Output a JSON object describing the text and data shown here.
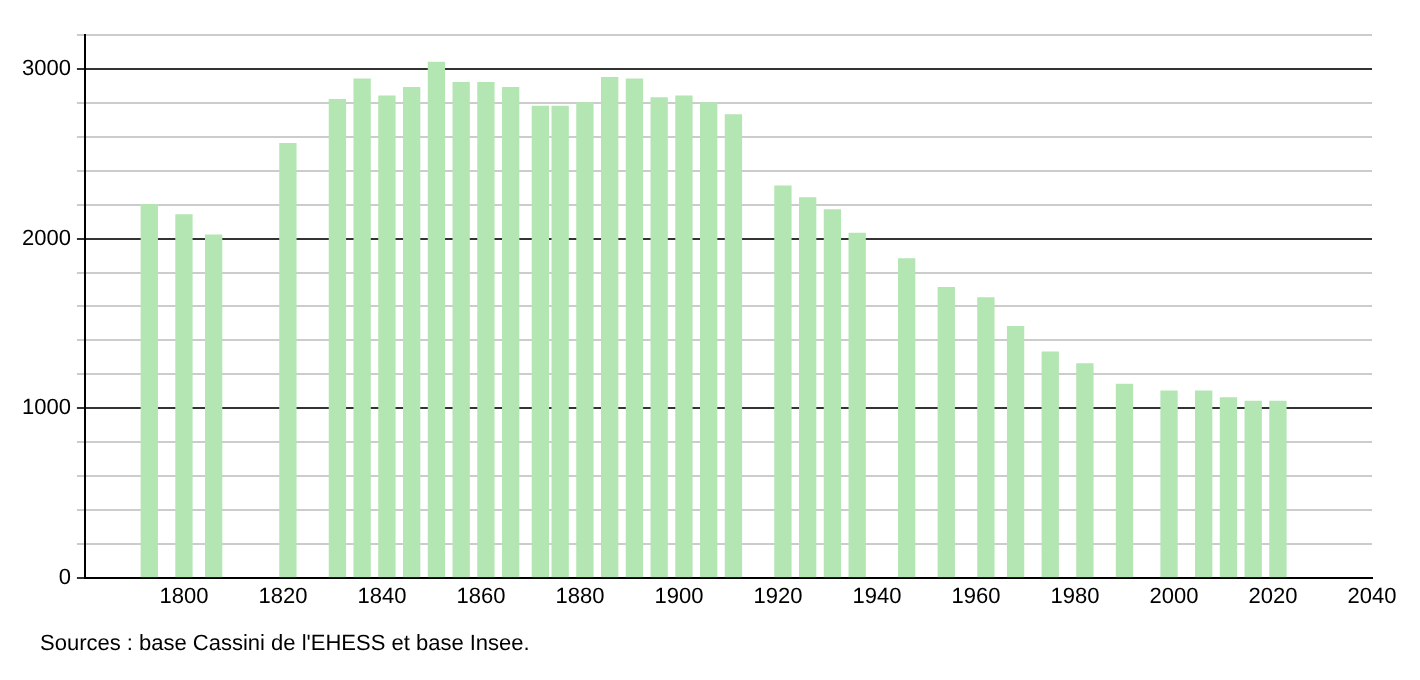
{
  "chart_data": {
    "type": "bar",
    "x": [
      1793,
      1800,
      1806,
      1821,
      1831,
      1836,
      1841,
      1846,
      1851,
      1856,
      1861,
      1866,
      1872,
      1876,
      1881,
      1886,
      1891,
      1896,
      1901,
      1906,
      1911,
      1921,
      1926,
      1931,
      1936,
      1946,
      1954,
      1962,
      1968,
      1975,
      1982,
      1990,
      1999,
      2006,
      2011,
      2016,
      2021
    ],
    "values": [
      2200,
      2140,
      2020,
      2560,
      2820,
      2940,
      2840,
      2890,
      3040,
      2920,
      2920,
      2890,
      2780,
      2780,
      2800,
      2950,
      2940,
      2830,
      2840,
      2800,
      2730,
      2310,
      2240,
      2170,
      2030,
      1880,
      1710,
      1650,
      1480,
      1330,
      1260,
      1140,
      1100,
      1100,
      1060,
      1040,
      1040
    ],
    "color": "#b3e6b3",
    "xlim": [
      1780,
      2040
    ],
    "xticks": [
      1800,
      1820,
      1840,
      1860,
      1880,
      1900,
      1920,
      1940,
      1960,
      1980,
      2000,
      2020,
      2040
    ],
    "ylim": [
      0,
      3200
    ],
    "yticks": [
      0,
      {
        "value": 200,
        "label": null
      },
      {
        "value": 400,
        "label": null
      },
      {
        "value": 600,
        "label": null
      },
      {
        "value": 800,
        "label": null
      },
      1000,
      {
        "value": 1200,
        "label": null
      },
      {
        "value": 1400,
        "label": null
      },
      {
        "value": 1600,
        "label": null
      },
      {
        "value": 1800,
        "label": null
      },
      2000,
      {
        "value": 2200,
        "label": null
      },
      {
        "value": 2400,
        "label": null
      },
      {
        "value": 2600,
        "label": null
      },
      {
        "value": 2800,
        "label": null
      },
      3000,
      {
        "value": 3200,
        "label": null
      }
    ],
    "grid": "y",
    "legend": false,
    "annotations": [
      "Sources : base Cassini de l'EHESS et base Insee."
    ]
  }
}
